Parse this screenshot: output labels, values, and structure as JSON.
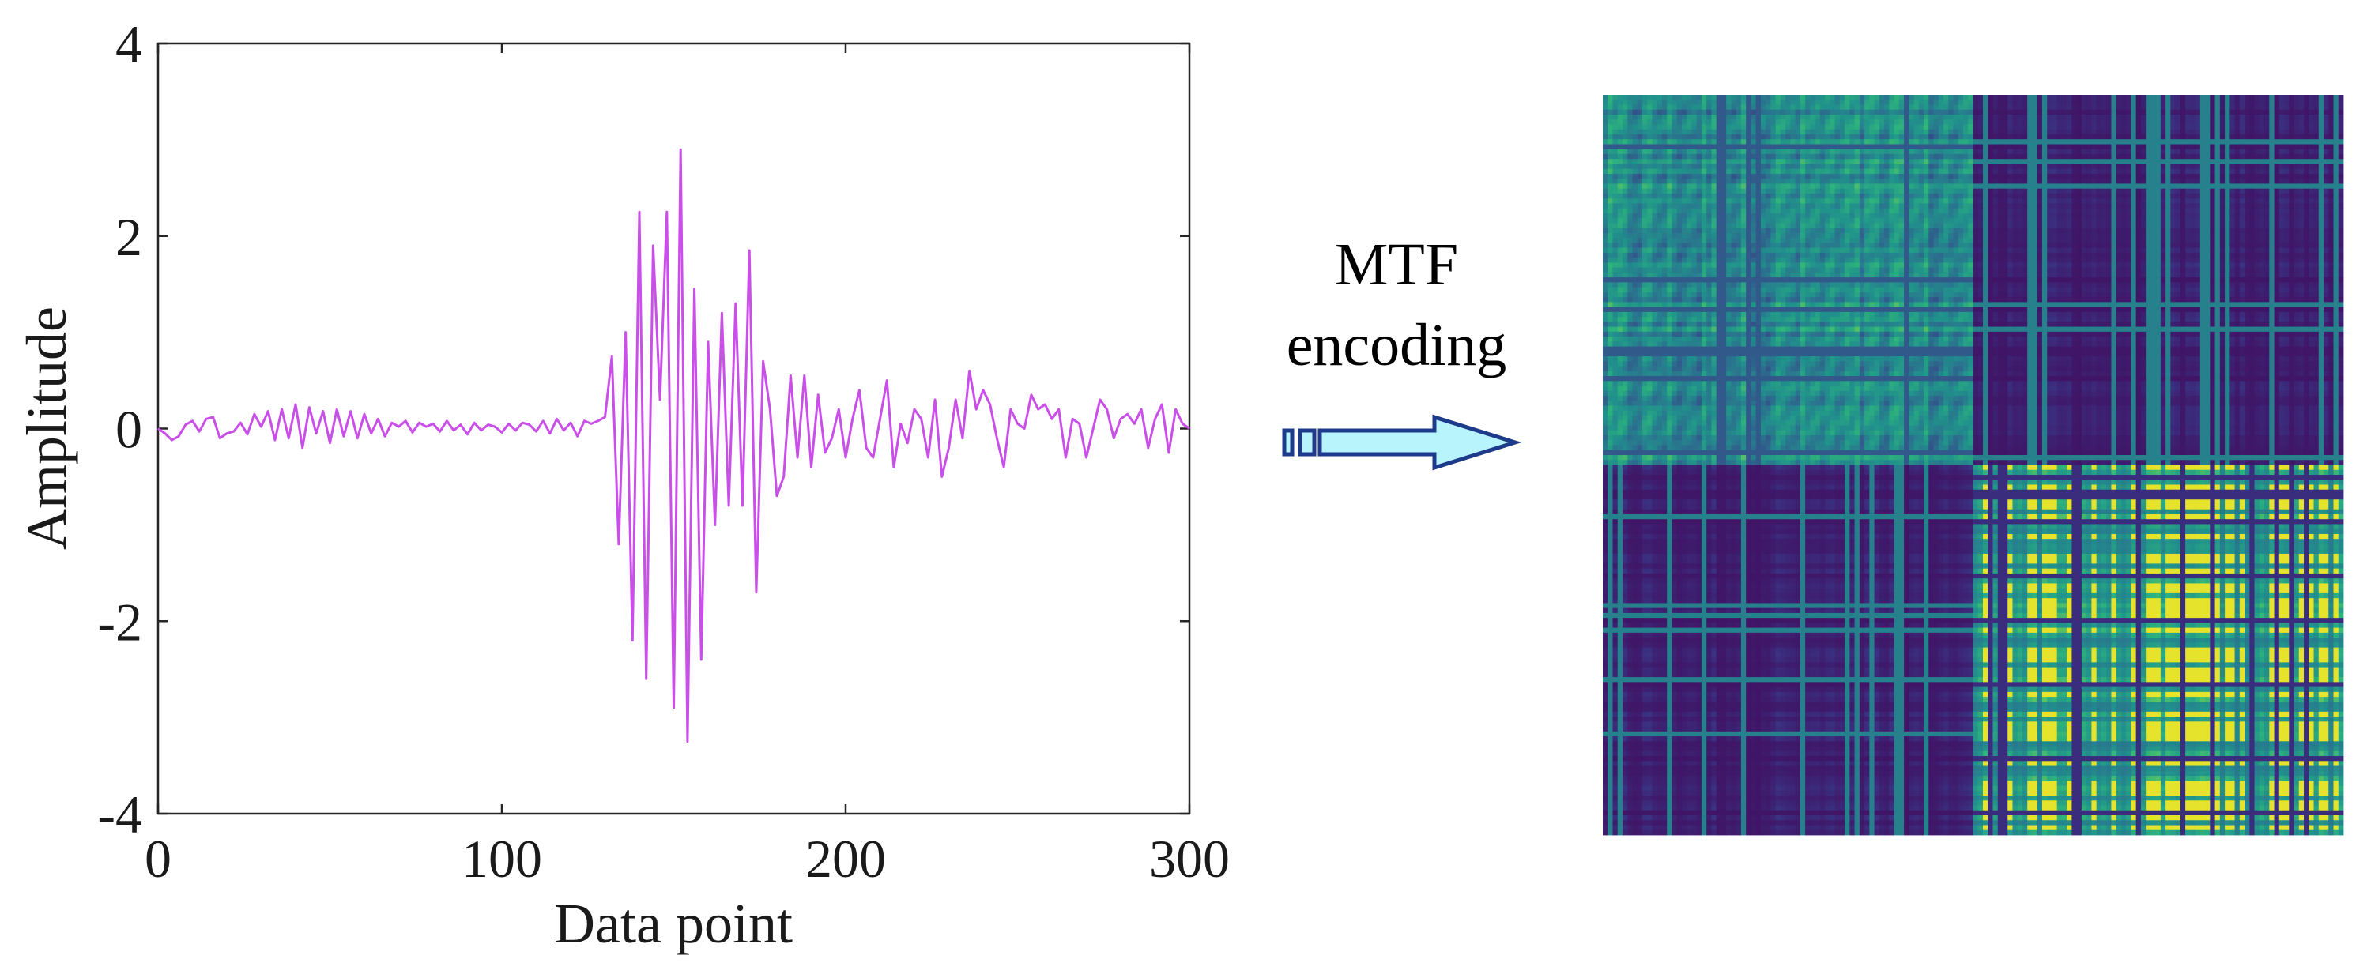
{
  "chart_data": [
    {
      "type": "line",
      "title": "",
      "xlabel": "Data point",
      "ylabel": "Amplitude",
      "xlim": [
        0,
        300
      ],
      "ylim": [
        -4,
        4
      ],
      "xticks": [
        0,
        100,
        200,
        300
      ],
      "xtick_labels": [
        "0",
        "100",
        "200",
        "300"
      ],
      "yticks": [
        -4,
        -2,
        0,
        2,
        4
      ],
      "ytick_labels": [
        "-4",
        "-2",
        "0",
        "2",
        "4"
      ],
      "grid": false,
      "legend": "none",
      "series": [
        {
          "color": "#c94fe8",
          "x": [
            0,
            2,
            4,
            6,
            8,
            10,
            12,
            14,
            16,
            18,
            20,
            22,
            24,
            26,
            28,
            30,
            32,
            34,
            36,
            38,
            40,
            42,
            44,
            46,
            48,
            50,
            52,
            54,
            56,
            58,
            60,
            62,
            64,
            66,
            68,
            70,
            72,
            74,
            76,
            78,
            80,
            82,
            84,
            86,
            88,
            90,
            92,
            94,
            96,
            98,
            100,
            102,
            104,
            106,
            108,
            110,
            112,
            114,
            116,
            118,
            120,
            122,
            124,
            126,
            128,
            130,
            132,
            134,
            136,
            138,
            140,
            142,
            144,
            146,
            148,
            150,
            152,
            154,
            156,
            158,
            160,
            162,
            164,
            166,
            168,
            170,
            172,
            174,
            176,
            178,
            180,
            182,
            184,
            186,
            188,
            190,
            192,
            194,
            196,
            198,
            200,
            202,
            204,
            206,
            208,
            210,
            212,
            214,
            216,
            218,
            220,
            222,
            224,
            226,
            228,
            230,
            232,
            234,
            236,
            238,
            240,
            242,
            244,
            246,
            248,
            250,
            252,
            254,
            256,
            258,
            260,
            262,
            264,
            266,
            268,
            270,
            272,
            274,
            276,
            278,
            280,
            282,
            284,
            286,
            288,
            290,
            292,
            294,
            296,
            298,
            300
          ],
          "y": [
            0.0,
            -0.05,
            -0.12,
            -0.08,
            0.04,
            0.08,
            -0.03,
            0.1,
            0.12,
            -0.1,
            -0.05,
            -0.03,
            0.06,
            -0.06,
            0.15,
            0.02,
            0.18,
            -0.12,
            0.2,
            -0.1,
            0.25,
            -0.2,
            0.22,
            -0.05,
            0.18,
            -0.15,
            0.2,
            -0.08,
            0.18,
            -0.1,
            0.15,
            -0.05,
            0.1,
            -0.08,
            0.06,
            0.02,
            0.08,
            -0.04,
            0.06,
            0.02,
            0.05,
            -0.03,
            0.08,
            -0.02,
            0.04,
            -0.06,
            0.06,
            -0.02,
            0.04,
            0.02,
            -0.04,
            0.05,
            -0.02,
            0.06,
            0.04,
            -0.03,
            0.08,
            -0.05,
            0.1,
            -0.02,
            0.06,
            -0.08,
            0.08,
            0.05,
            0.08,
            0.12,
            0.75,
            -1.2,
            1.0,
            -2.2,
            2.25,
            -2.6,
            1.9,
            0.3,
            2.25,
            -2.9,
            2.9,
            -3.25,
            1.45,
            -2.4,
            0.9,
            -1.0,
            1.2,
            -0.8,
            1.3,
            -0.8,
            1.85,
            -1.7,
            0.7,
            0.2,
            -0.7,
            -0.5,
            0.55,
            -0.3,
            0.55,
            -0.4,
            0.35,
            -0.25,
            -0.1,
            0.2,
            -0.3,
            0.1,
            0.4,
            -0.2,
            -0.3,
            0.1,
            0.5,
            -0.4,
            0.05,
            -0.15,
            0.2,
            0.1,
            -0.3,
            0.3,
            -0.5,
            -0.2,
            0.3,
            -0.1,
            0.6,
            0.2,
            0.4,
            0.25,
            -0.1,
            -0.4,
            0.2,
            0.05,
            0.0,
            0.35,
            0.2,
            0.25,
            0.1,
            0.2,
            -0.3,
            0.1,
            0.05,
            -0.3,
            0.0,
            0.3,
            0.2,
            -0.1,
            0.1,
            0.15,
            0.05,
            0.2,
            -0.2,
            0.1,
            0.25,
            -0.25,
            0.2,
            0.05,
            0.0
          ]
        }
      ]
    },
    {
      "type": "heatmap",
      "title": "",
      "grid_size": 150,
      "colormap": "viridis",
      "colors": {
        "low": "#440154",
        "mid_low": "#2c4a8a",
        "mid": "#21908d",
        "mid_high": "#3db98a",
        "high": "#fde725"
      },
      "quadrants": {
        "top_left": "teal",
        "top_right": "purple",
        "bottom_left": "purple",
        "bottom_right": "yellow"
      }
    }
  ],
  "arrow": {
    "label_line1": "MTF",
    "label_line2": "encoding",
    "fill_color": "#b8f4fb",
    "stroke_color": "#1e3a8a"
  }
}
